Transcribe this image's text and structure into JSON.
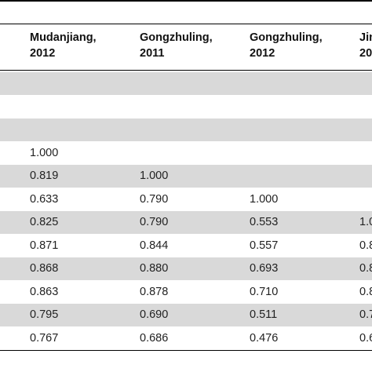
{
  "table": {
    "header": [
      {
        "line1": "Mudanjiang,",
        "line2": "2012"
      },
      {
        "line1": "Gongzhuling,",
        "line2": "2011"
      },
      {
        "line1": "Gongzhuling,",
        "line2": "2012"
      },
      {
        "line1": "Jin",
        "line2": "20"
      }
    ],
    "rows": [
      [
        null,
        null,
        null,
        null
      ],
      [
        null,
        null,
        null,
        null
      ],
      [
        null,
        null,
        null,
        null
      ],
      [
        "1.000",
        null,
        null,
        null
      ],
      [
        "0.819",
        "1.000",
        null,
        null
      ],
      [
        "0.633",
        "0.790",
        "1.000",
        null
      ],
      [
        "0.825",
        "0.790",
        "0.553",
        "1.0"
      ],
      [
        "0.871",
        "0.844",
        "0.557",
        "0.8"
      ],
      [
        "0.868",
        "0.880",
        "0.693",
        "0.8"
      ],
      [
        "0.863",
        "0.878",
        "0.710",
        "0.8"
      ],
      [
        "0.795",
        "0.690",
        "0.511",
        "0.7"
      ],
      [
        "0.767",
        "0.686",
        "0.476",
        "0.6"
      ]
    ]
  }
}
